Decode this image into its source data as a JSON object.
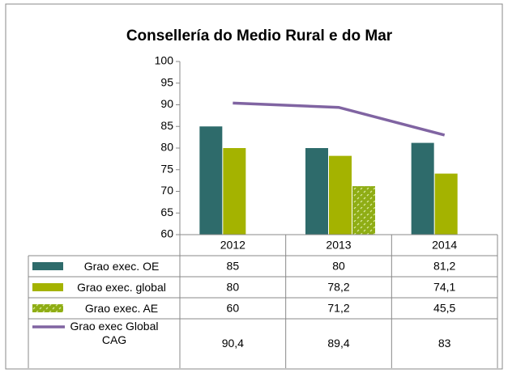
{
  "chart_data": {
    "type": "bar",
    "title": "Consellería do Medio Rural e do Mar",
    "categories": [
      "2012",
      "2013",
      "2014"
    ],
    "series": [
      {
        "name": "Grao exec. OE",
        "color": "#2e6b6b",
        "values": [
          85,
          80,
          81.2
        ],
        "value_labels": [
          "85",
          "80",
          "81,2"
        ]
      },
      {
        "name": "Grao exec. global",
        "color": "#a4b300",
        "values": [
          80,
          78.2,
          74.1
        ],
        "value_labels": [
          "80",
          "78,2",
          "74,1"
        ]
      },
      {
        "name": "Grao exec. AE",
        "color": "#8fad15",
        "pattern": true,
        "values": [
          60,
          71.2,
          45.5
        ],
        "value_labels": [
          "60",
          "71,2",
          "45,5"
        ]
      },
      {
        "name": "Grao exec Global CAG",
        "color": "#8064a2",
        "type": "line",
        "values": [
          90.4,
          89.4,
          83
        ],
        "value_labels": [
          "90,4",
          "89,4",
          "83"
        ]
      }
    ],
    "ylim": [
      60,
      100
    ],
    "yticks": [
      60,
      65,
      70,
      75,
      80,
      85,
      90,
      95,
      100
    ],
    "grid": false
  }
}
